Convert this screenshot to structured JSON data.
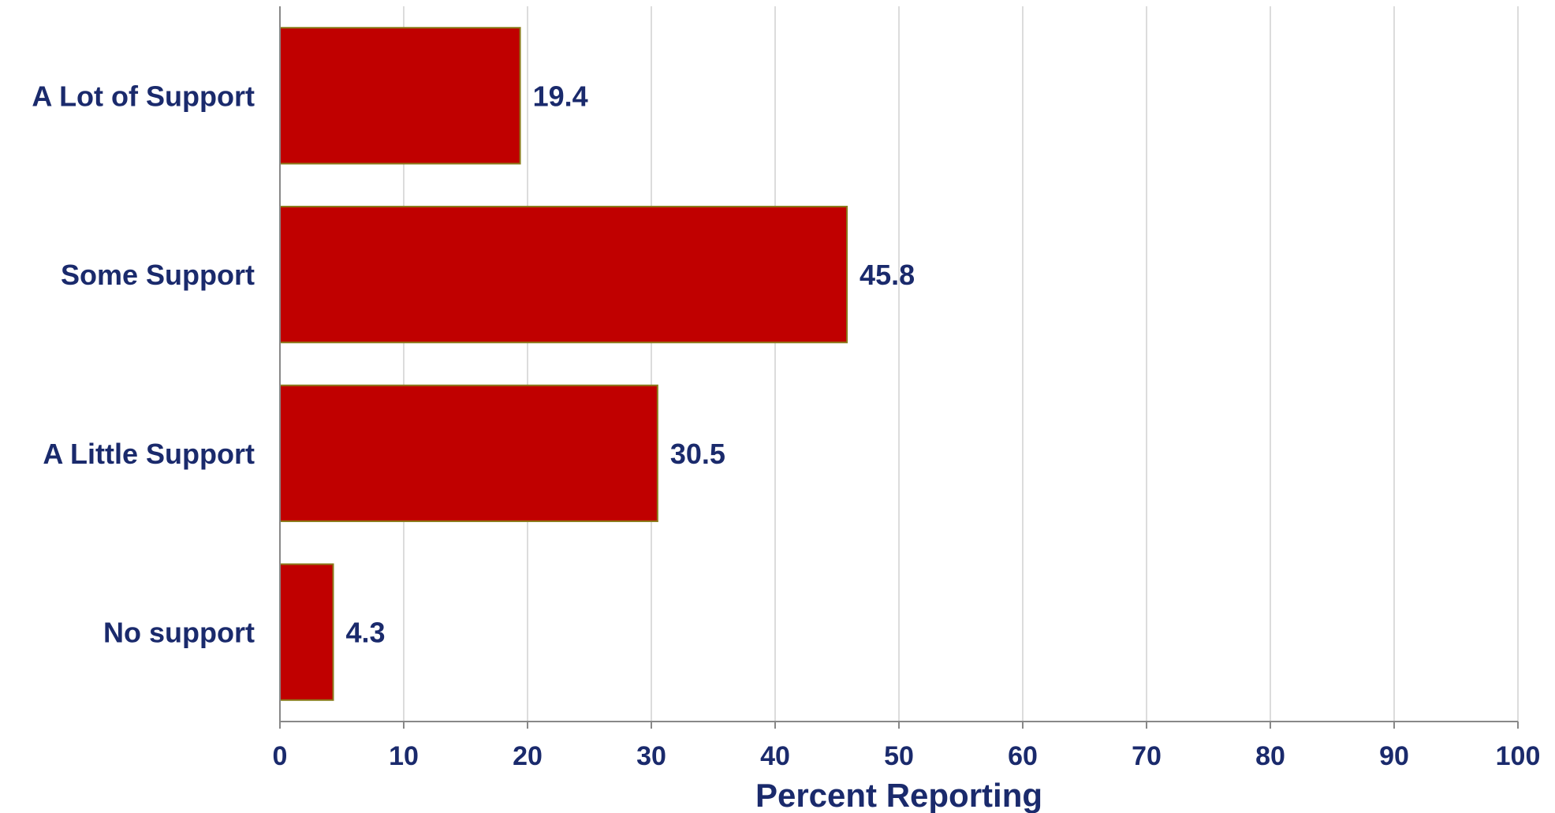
{
  "chart_data": {
    "type": "bar",
    "orientation": "horizontal",
    "categories": [
      "A Lot of Support",
      "Some Support",
      "A Little Support",
      "No support"
    ],
    "values": [
      19.4,
      45.8,
      30.5,
      4.3
    ],
    "value_labels": [
      "19.4",
      "45.8",
      "30.5",
      "4.3"
    ],
    "title": "",
    "xlabel": "Percent Reporting",
    "ylabel": "",
    "xlim": [
      0,
      100
    ],
    "xticks": [
      "0",
      "10",
      "20",
      "30",
      "40",
      "50",
      "60",
      "70",
      "80",
      "90",
      "100"
    ],
    "grid": true,
    "legend": "none",
    "colors": {
      "bar_fill": "#c00000",
      "bar_edge": "#8a7a1a",
      "text": "#1a2a6c",
      "grid": "#d0d0d0",
      "axis": "#888888"
    }
  }
}
